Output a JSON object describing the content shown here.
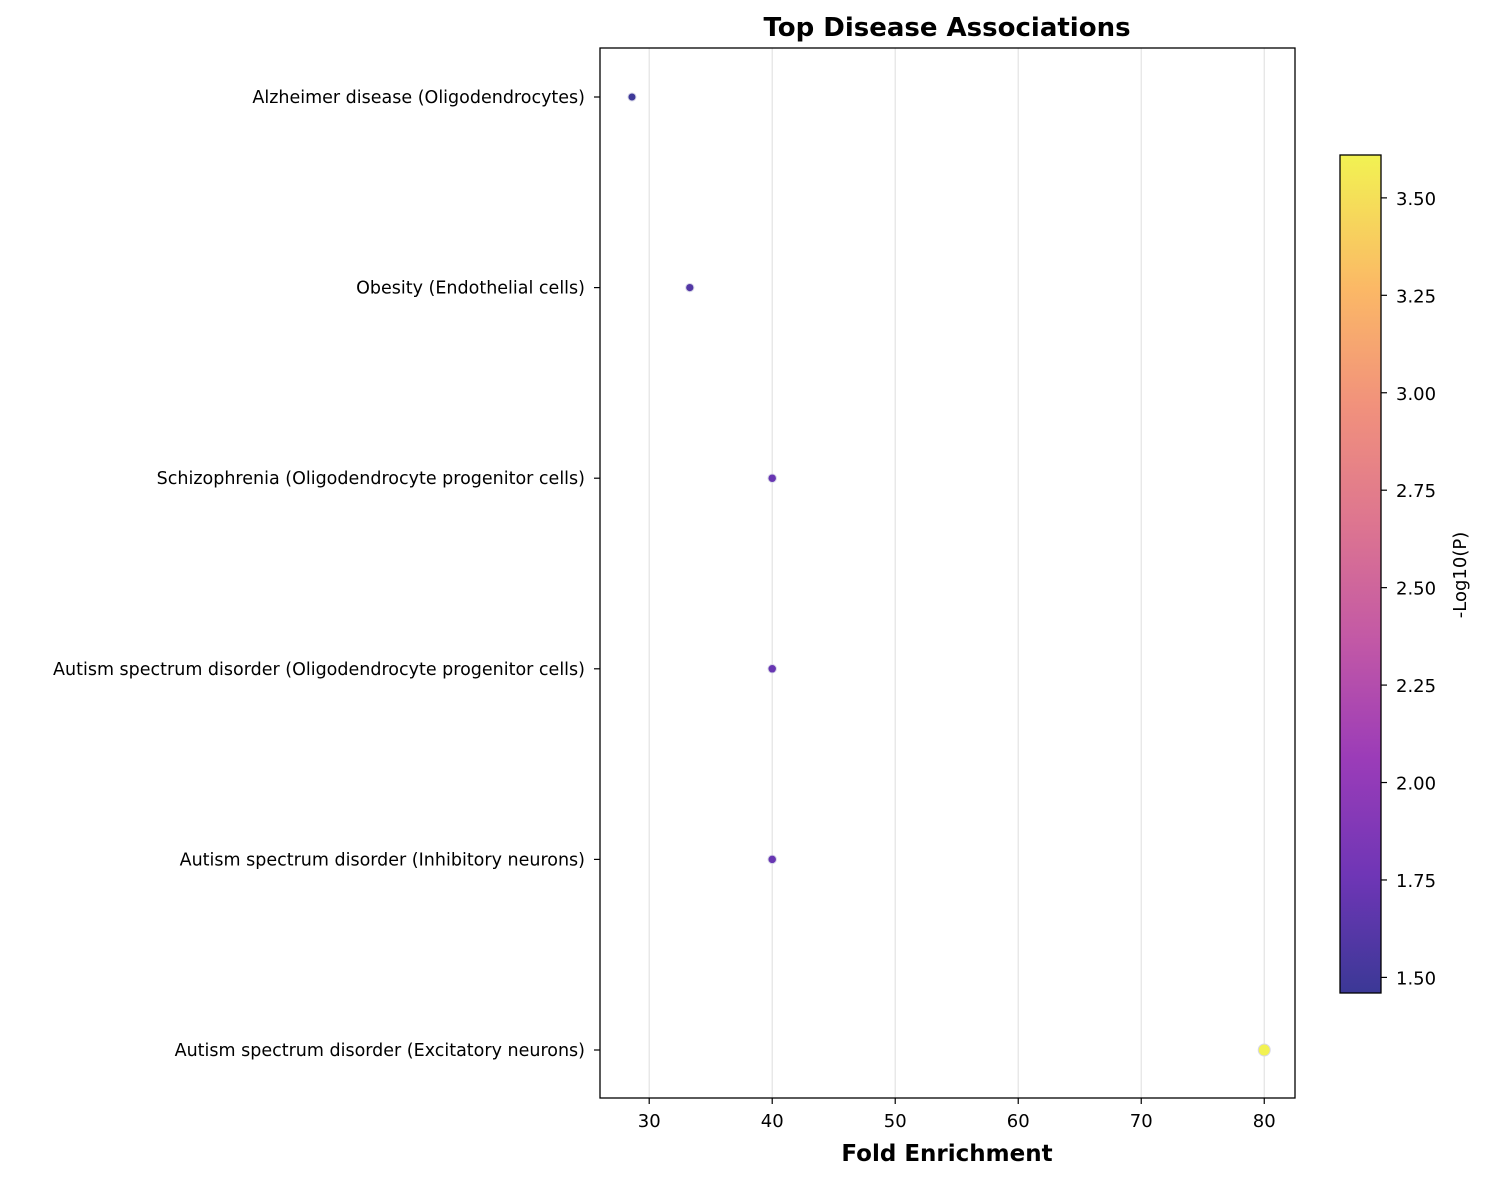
{
  "chart_data": {
    "type": "scatter",
    "title": "Top Disease Associations",
    "xlabel": "Fold Enrichment",
    "ylabel": "",
    "xlim": [
      26,
      82.5
    ],
    "xticks": [
      "30",
      "40",
      "50",
      "60",
      "70",
      "80"
    ],
    "grid": "vertical",
    "categories": [
      "Alzheimer disease (Oligodendrocytes)",
      "Obesity (Endothelial cells)",
      "Schizophrenia (Oligodendrocyte progenitor cells)",
      "Autism spectrum disorder (Oligodendrocyte progenitor cells)",
      "Autism spectrum disorder (Inhibitory neurons)",
      "Autism spectrum disorder (Excitatory neurons)"
    ],
    "points": [
      {
        "category": "Alzheimer disease (Oligodendrocytes)",
        "x": 28.6,
        "neglog10p": 1.48
      },
      {
        "category": "Obesity (Endothelial cells)",
        "x": 33.3,
        "neglog10p": 1.6
      },
      {
        "category": "Schizophrenia (Oligodendrocyte progenitor cells)",
        "x": 40,
        "neglog10p": 1.72
      },
      {
        "category": "Autism spectrum disorder (Oligodendrocyte progenitor cells)",
        "x": 40,
        "neglog10p": 1.72
      },
      {
        "category": "Autism spectrum disorder (Inhibitory neurons)",
        "x": 40,
        "neglog10p": 1.72
      },
      {
        "category": "Autism spectrum disorder (Excitatory neurons)",
        "x": 80,
        "neglog10p": 3.61
      }
    ],
    "colorbar": {
      "label": "-Log10(P)",
      "colormap": "plasma",
      "range": [
        1.46,
        3.61
      ],
      "ticks": [
        "1.50",
        "1.75",
        "2.00",
        "2.25",
        "2.50",
        "2.75",
        "3.00",
        "3.25",
        "3.50"
      ]
    }
  }
}
